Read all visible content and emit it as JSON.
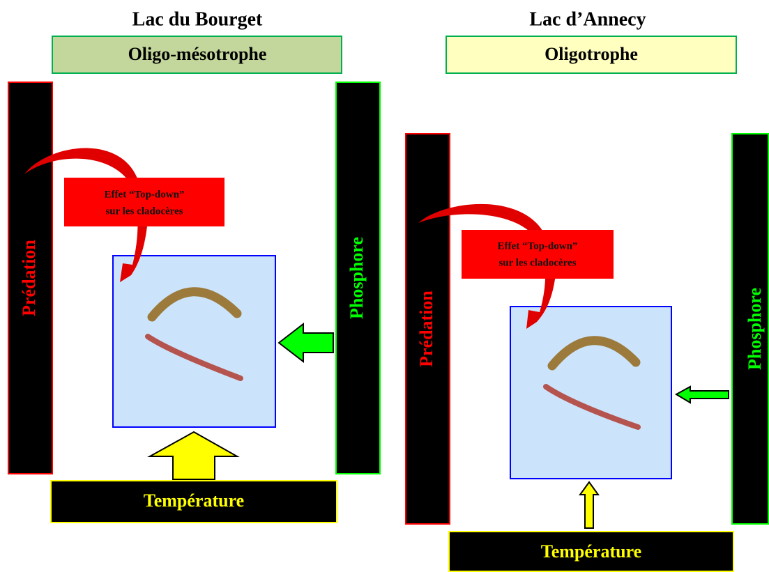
{
  "panels": [
    {
      "title": "Lac du Bourget",
      "status": "Oligo-mésotrophe",
      "left_bar": "Prédation",
      "right_bar": "Phosphore",
      "bottom_bar": "Température",
      "callout": [
        "Effet “Top-down”",
        "sur les cladocères"
      ]
    },
    {
      "title": "Lac d’Annecy",
      "status": "Oligotrophe",
      "left_bar": "Prédation",
      "right_bar": "Phosphore",
      "bottom_bar": "Température",
      "callout": [
        "Effet “Top-down”",
        "sur les cladocères"
      ]
    }
  ]
}
